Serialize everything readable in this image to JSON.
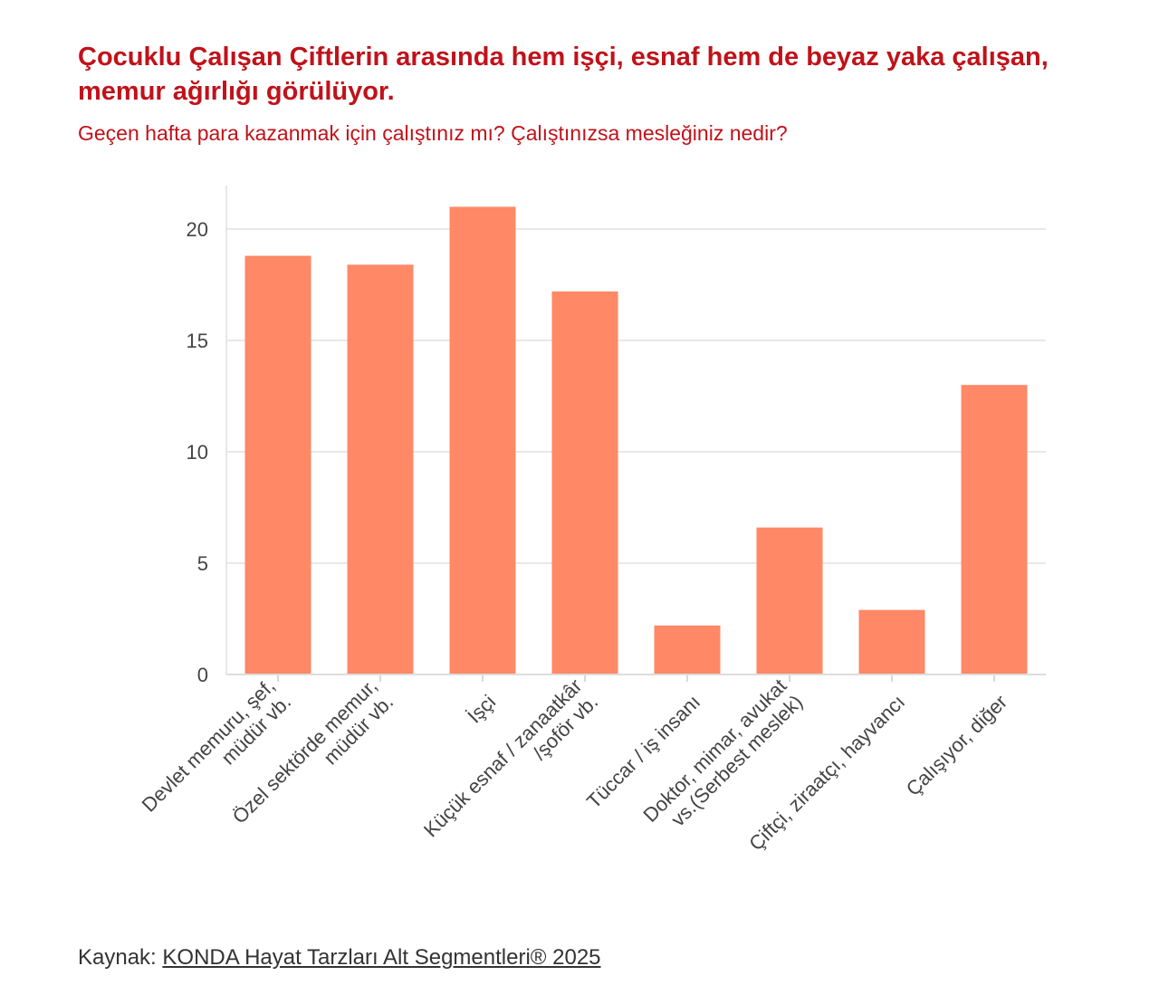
{
  "header": {
    "title": "Çocuklu Çalışan Çiftlerin arasında hem işçi, esnaf hem de beyaz yaka çalışan, memur ağırlığı görülüyor.",
    "subtitle": "Geçen hafta para kazanmak için çalıştınız mı? Çalıştınızsa mesleğiniz nedir?"
  },
  "footer": {
    "source_prefix": "Kaynak:",
    "source_link": "KONDA Hayat Tarzları Alt Segmentleri® 2025"
  },
  "colors": {
    "title": "#c0121a",
    "bar": "#ff8866",
    "grid": "#e8e8e8",
    "axis_text": "#444444"
  },
  "chart_data": {
    "type": "bar",
    "title": "",
    "xlabel": "",
    "ylabel": "",
    "ylim": [
      0,
      22
    ],
    "yticks": [
      0,
      5,
      10,
      15,
      20
    ],
    "grid": true,
    "categories": [
      [
        "Devlet memuru, şef,",
        "müdür vb."
      ],
      [
        "Özel sektörde memur,",
        "müdür vb."
      ],
      [
        "İşçi"
      ],
      [
        "Küçük esnaf / zanaatkâr",
        "/şoför vb."
      ],
      [
        "Tüccar / iş insanı"
      ],
      [
        "Doktor, mimar, avukat",
        "vs.(Serbest meslek)"
      ],
      [
        "Çiftçi, ziraatçı, hayvancı"
      ],
      [
        "Çalışıyor, diğer"
      ]
    ],
    "values": [
      18.8,
      18.4,
      21.0,
      17.2,
      2.2,
      6.6,
      2.9,
      13.0
    ]
  }
}
